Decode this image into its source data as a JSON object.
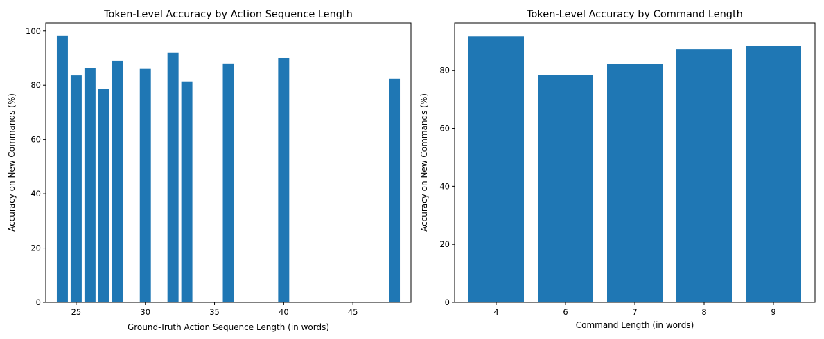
{
  "colors": {
    "bar": "#1f77b4",
    "axis": "#000000",
    "background": "#ffffff"
  },
  "chart_data": [
    {
      "type": "bar",
      "title": "Token-Level Accuracy by Action Sequence Length",
      "xlabel": "Ground-Truth Action Sequence Length (in words)",
      "ylabel": "Accuracy on New Commands (%)",
      "x_numeric": true,
      "bar_width": 0.8,
      "x": [
        24,
        25,
        26,
        27,
        28,
        30,
        32,
        33,
        36,
        40,
        48
      ],
      "values": [
        98.2,
        83.6,
        86.4,
        78.6,
        89.0,
        86.0,
        92.1,
        81.4,
        88.0,
        90.0,
        82.4
      ],
      "xlim": [
        22.8,
        49.2
      ],
      "ylim": [
        0,
        103
      ],
      "xticks": [
        25,
        30,
        35,
        40,
        45
      ],
      "yticks": [
        0,
        20,
        40,
        60,
        80,
        100
      ],
      "grid": false
    },
    {
      "type": "bar",
      "title": "Token-Level Accuracy by Command Length",
      "xlabel": "Command Length (in words)",
      "ylabel": "Accuracy on New Commands (%)",
      "x_numeric": false,
      "bar_width": 0.8,
      "categories": [
        "4",
        "6",
        "7",
        "8",
        "9"
      ],
      "values": [
        91.8,
        78.3,
        82.3,
        87.3,
        88.3
      ],
      "ylim": [
        0,
        96.4
      ],
      "yticks": [
        0,
        20,
        40,
        60,
        80
      ],
      "grid": false
    }
  ]
}
